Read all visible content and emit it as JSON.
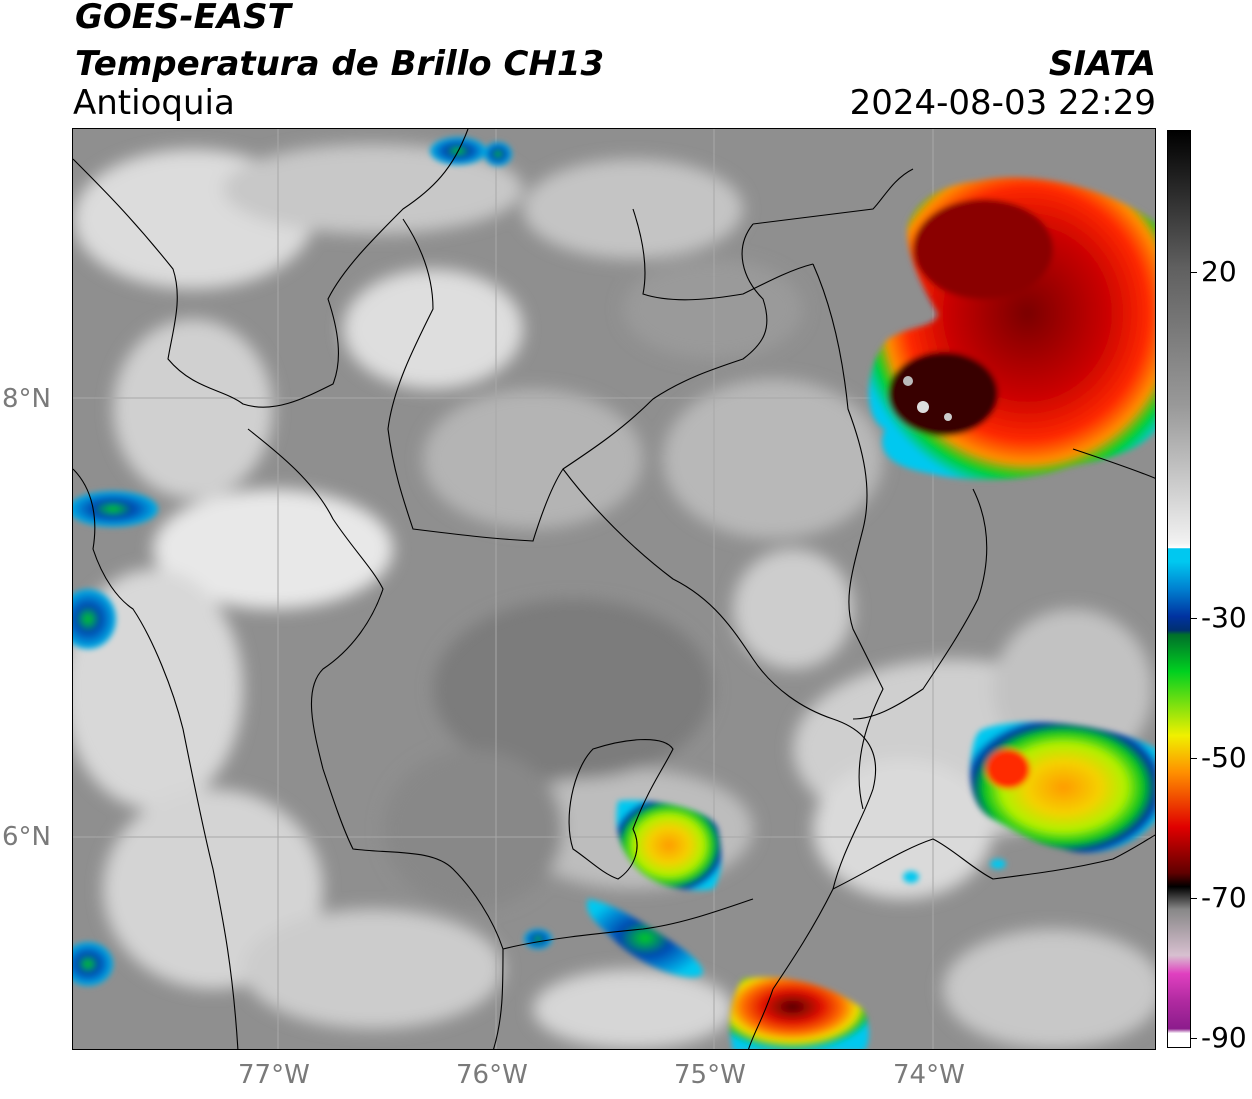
{
  "header": {
    "title_line1": "GOES-EAST",
    "title_line2": "Temperatura de Brillo CH13",
    "region": "Antioquia",
    "agency": "SIATA",
    "datetime": "2024-08-03 22:29"
  },
  "map": {
    "lat_labels": [
      "8°N",
      "6°N"
    ],
    "lon_labels": [
      "77°W",
      "76°W",
      "75°W",
      "74°W"
    ]
  },
  "colorbar": {
    "tick_labels": [
      "20",
      "-30",
      "-50",
      "-70",
      "-90"
    ],
    "colors": {
      "gray_light": "#f2f2f2",
      "gray_dark": "#606060",
      "cyan": "#00c8f0",
      "blue": "#0032a0",
      "green": "#00d020",
      "yellow": "#f0f000",
      "orange": "#ff9000",
      "red": "#e00000",
      "dark_red": "#600000",
      "black": "#000000",
      "magenta": "#e040c0",
      "purple": "#8c1c8c"
    }
  }
}
